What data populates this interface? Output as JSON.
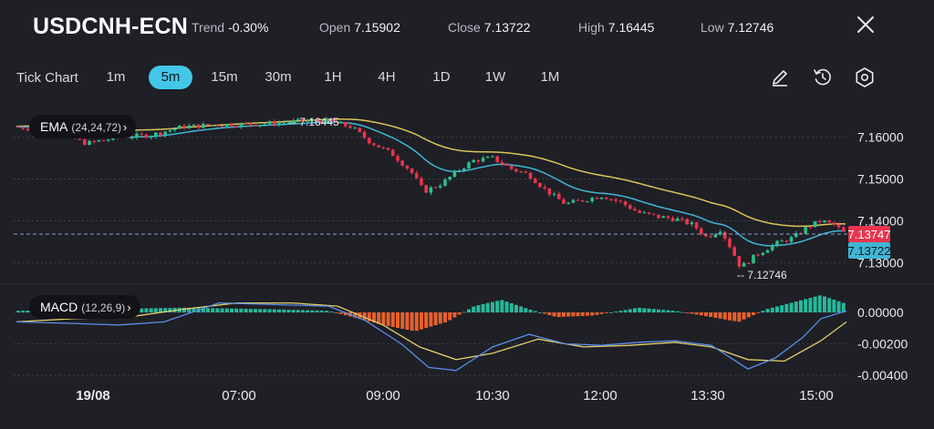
{
  "header": {
    "symbol": "USDCNH-ECN",
    "trend_label": "Trend",
    "trend_value": "-0.30%",
    "open_label": "Open",
    "open_value": "7.15902",
    "close_label": "Close",
    "close_value": "7.13722",
    "high_label": "High",
    "high_value": "7.16445",
    "low_label": "Low",
    "low_value": "7.12746",
    "close_icon": "close-icon"
  },
  "toolbar": {
    "chart_type_label": "Tick Chart",
    "timeframes": [
      "1m",
      "5m",
      "15m",
      "30m",
      "1H",
      "4H",
      "1D",
      "1W",
      "1M"
    ],
    "active_timeframe": "5m",
    "icons": [
      "pencil-icon",
      "clock-refresh-icon",
      "settings-hexagon-icon"
    ]
  },
  "indicators": {
    "ema": {
      "name": "EMA",
      "params": "(24,24,72)",
      "chevron": "›"
    },
    "macd": {
      "name": "MACD",
      "params": "(12,26,9)",
      "chevron": "›"
    }
  },
  "colors": {
    "background": "#1f1f26",
    "bullish": "#2bbf8a",
    "bearish": "#e8344e",
    "ema_fast": "#3fb7d6",
    "ema_slow": "#d9c65a",
    "macd_line": "#5b8de8",
    "signal_line": "#e3d06a",
    "hist_positive": "#26b99a",
    "hist_negative": "#e8602c",
    "accent": "#43c7e8"
  },
  "chart_data": [
    {
      "type": "candlestick",
      "title": "USDCNH-ECN",
      "x_ticks": [
        "19/08",
        "07:00",
        "09:00",
        "10:30",
        "12:00",
        "13:30",
        "15:00"
      ],
      "y_ticks": [
        "7.16000",
        "7.15000",
        "7.14000",
        "7.13000"
      ],
      "ylim": [
        7.1245,
        7.168
      ],
      "high_marker": "7.16445",
      "low_marker": "7.12746",
      "price_labels": {
        "bid": "7.13747",
        "close": "7.13722"
      },
      "overlays": [
        "EMA fast",
        "EMA slow"
      ]
    },
    {
      "type": "bar",
      "title": "MACD",
      "y_ticks": [
        "0.00000",
        "-0.00200",
        "-0.00400"
      ],
      "ylim": [
        -0.0042,
        0.0012
      ],
      "series_names": [
        "MACD",
        "Signal",
        "Histogram"
      ]
    }
  ]
}
